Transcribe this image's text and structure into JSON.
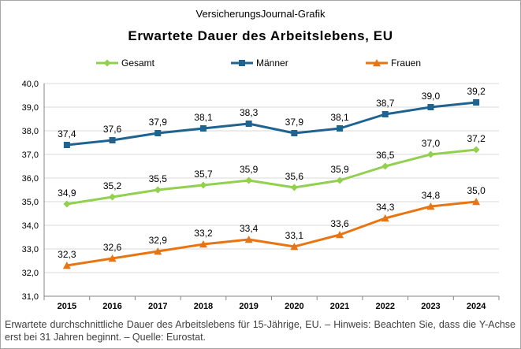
{
  "header": {
    "source_label": "VersicherungsJournal-Grafik",
    "title": "Erwartete Dauer des Arbeitslebens, EU"
  },
  "footnote": "Erwartete durchschnittliche Dauer des Arbeitslebens für 15-Jährige, EU. – Hinweis: Beachten Sie, dass die Y-Achse erst bei 31 Jahren beginnt. – Quelle: Eurostat.",
  "chart_data": {
    "type": "line",
    "title": "Erwartete Dauer des Arbeitslebens, EU",
    "xlabel": "",
    "ylabel": "",
    "categories": [
      "2015",
      "2016",
      "2017",
      "2018",
      "2019",
      "2020",
      "2021",
      "2022",
      "2023",
      "2024"
    ],
    "ylim": [
      31.0,
      40.0
    ],
    "yticks": [
      "31,0",
      "32,0",
      "33,0",
      "34,0",
      "35,0",
      "36,0",
      "37,0",
      "38,0",
      "39,0",
      "40,0"
    ],
    "grid": true,
    "legend_position": "top",
    "series": [
      {
        "name": "Gesamt",
        "color": "#92d050",
        "marker": "diamond",
        "values": [
          34.9,
          35.2,
          35.5,
          35.7,
          35.9,
          35.6,
          35.9,
          36.5,
          37.0,
          37.2
        ],
        "labels": [
          "34,9",
          "35,2",
          "35,5",
          "35,7",
          "35,9",
          "35,6",
          "35,9",
          "36,5",
          "37,0",
          "37,2"
        ]
      },
      {
        "name": "Männer",
        "color": "#1f6391",
        "marker": "square",
        "values": [
          37.4,
          37.6,
          37.9,
          38.1,
          38.3,
          37.9,
          38.1,
          38.7,
          39.0,
          39.2
        ],
        "labels": [
          "37,4",
          "37,6",
          "37,9",
          "38,1",
          "38,3",
          "37,9",
          "38,1",
          "38,7",
          "39,0",
          "39,2"
        ]
      },
      {
        "name": "Frauen",
        "color": "#e87511",
        "marker": "triangle",
        "values": [
          32.3,
          32.6,
          32.9,
          33.2,
          33.4,
          33.1,
          33.6,
          34.3,
          34.8,
          35.0
        ],
        "labels": [
          "32,3",
          "32,6",
          "32,9",
          "33,2",
          "33,4",
          "33,1",
          "33,6",
          "34,3",
          "34,8",
          "35,0"
        ]
      }
    ]
  }
}
